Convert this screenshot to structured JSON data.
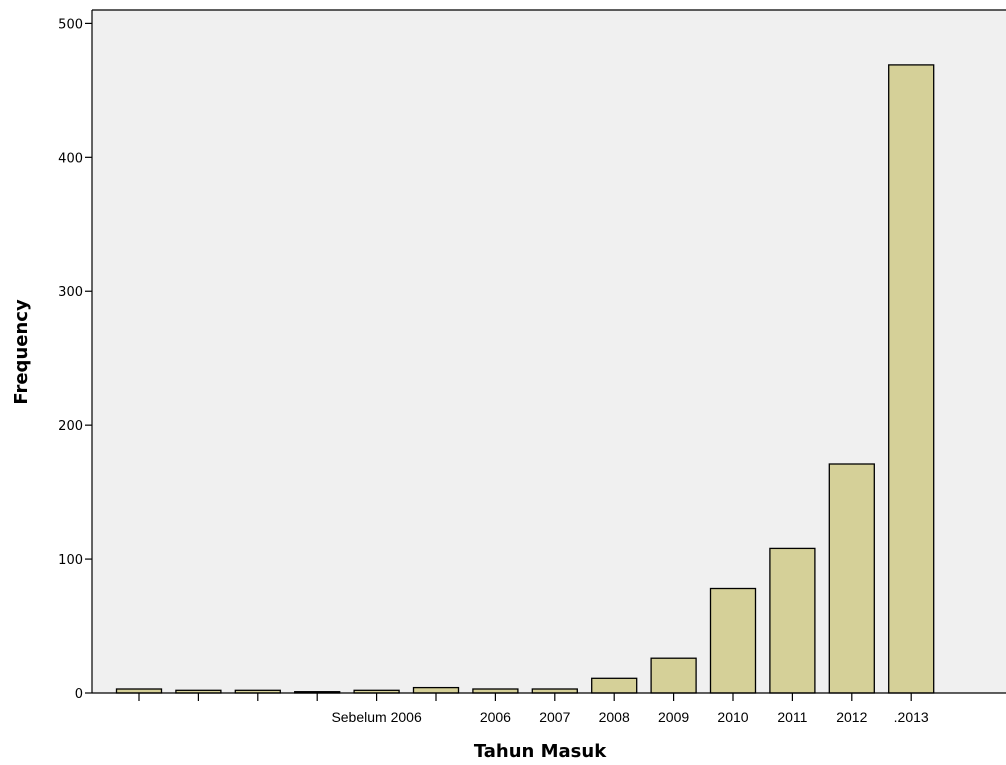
{
  "chart_data": {
    "type": "bar",
    "title": "",
    "xlabel": "Tahun Masuk",
    "ylabel": "Frequency",
    "ylim": [
      0,
      510
    ],
    "yticks": [
      0,
      100,
      200,
      300,
      400,
      500
    ],
    "grid": false,
    "legend": "none",
    "bar_color": "#D5D098",
    "plot_background": "#F0F0F0",
    "categories": [
      "",
      "",
      "",
      "",
      "Sebelum 2006",
      "",
      "2006",
      "2007",
      "2008",
      "2009",
      "2010",
      "2011",
      "2012",
      ".2013"
    ],
    "values": [
      3,
      2,
      2,
      1,
      2,
      4,
      3,
      3,
      11,
      26,
      78,
      108,
      171,
      469
    ]
  }
}
